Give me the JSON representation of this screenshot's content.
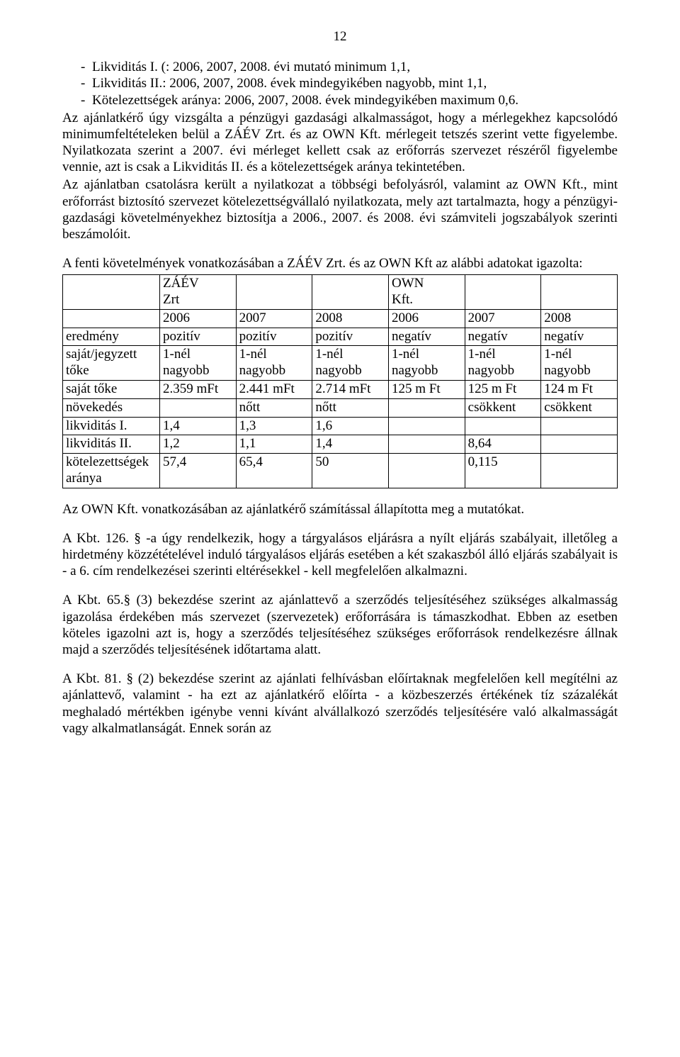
{
  "pageNumber": "12",
  "bullets": [
    "Likviditás I. (: 2006, 2007, 2008. évi mutató minimum 1,1,",
    "Likviditás II.: 2006, 2007, 2008. évek mindegyikében nagyobb, mint 1,1,",
    "Kötelezettségek aránya: 2006, 2007, 2008. évek mindegyikében maximum 0,6."
  ],
  "p1": "Az ajánlatkérő úgy vizsgálta a pénzügyi gazdasági alkalmasságot, hogy a mérlegekhez kapcsolódó minimumfeltételeken belül a ZÁÉV Zrt. és az OWN Kft. mérlegeit tetszés szerint vette figyelembe. Nyilatkozata szerint a 2007. évi mérleget kellett csak az erőforrás szervezet részéről figyelembe vennie, azt is csak a Likviditás II. és a kötelezettségek aránya tekintetében.",
  "p2": "Az ajánlatban csatolásra került a nyilatkozat a többségi befolyásról, valamint az OWN Kft., mint erőforrást biztosító szervezet kötelezettségvállaló nyilatkozata, mely azt tartalmazta, hogy a pénzügyi-gazdasági követelményekhez biztosítja a 2006., 2007. és 2008. évi számviteli jogszabályok szerinti beszámolóit.",
  "p3": "A fenti követelmények vonatkozásában a ZÁÉV Zrt. és az OWN Kft az alábbi adatokat igazolta:",
  "table": {
    "h1a": "ZÁÉV",
    "h1b": "Zrt",
    "h2a": "OWN",
    "h2b": "Kft.",
    "years": [
      "2006",
      "2007",
      "2008",
      "2006",
      "2007",
      "2008"
    ],
    "rows": [
      {
        "label": "eredmény",
        "cells": [
          "pozitív",
          "pozitív",
          "pozitív",
          "negatív",
          "negatív",
          "negatív"
        ]
      },
      {
        "label": "saját/jegyzett tőke",
        "cells": [
          "1-nél nagyobb",
          "1-nél nagyobb",
          "1-nél nagyobb",
          "1-nél nagyobb",
          "1-nél nagyobb",
          "1-nél nagyobb"
        ]
      },
      {
        "label": "saját tőke",
        "cells": [
          "2.359 mFt",
          "2.441 mFt",
          "2.714 mFt",
          "125 m Ft",
          "125 m Ft",
          "124 m Ft"
        ]
      },
      {
        "label": "növekedés",
        "cells": [
          "",
          "nőtt",
          "nőtt",
          "",
          "csökkent",
          "csökkent"
        ]
      },
      {
        "label": "likviditás I.",
        "cells": [
          "1,4",
          "1,3",
          "1,6",
          "",
          "",
          ""
        ]
      },
      {
        "label": "likviditás II.",
        "cells": [
          "1,2",
          "1,1",
          "1,4",
          "",
          "8,64",
          ""
        ]
      },
      {
        "label": "kötelezettségek aránya",
        "cells": [
          "57,4",
          "65,4",
          "50",
          "",
          "0,115",
          ""
        ]
      }
    ]
  },
  "p4": "Az OWN Kft. vonatkozásában az ajánlatkérő számítással állapította meg a mutatókat.",
  "p5": "A Kbt. 126. § -a úgy rendelkezik, hogy a tárgyalásos eljárásra a nyílt eljárás szabályait, illetőleg a hirdetmény közzétételével induló tárgyalásos eljárás esetében a két szakaszból álló eljárás szabályait is - a 6. cím rendelkezései szerinti eltérésekkel - kell megfelelően alkalmazni.",
  "p6": "A Kbt. 65.§ (3) bekezdése szerint az ajánlattevő a szerződés teljesítéséhez szükséges alkalmasság igazolása érdekében más szervezet (szervezetek) erőforrására is támaszkodhat. Ebben az esetben köteles igazolni azt is, hogy a szerződés teljesítéséhez szükséges erőforrások rendelkezésre állnak majd a szerződés teljesítésének időtartama alatt.",
  "p7": "A Kbt. 81. § (2) bekezdése szerint az ajánlati felhívásban előírtaknak megfelelően kell megítélni az ajánlattevő, valamint - ha ezt az ajánlatkérő előírta - a közbeszerzés értékének tíz százalékát meghaladó mértékben igénybe venni kívánt alvállalkozó szerződés teljesítésére való alkalmasságát vagy alkalmatlanságát. Ennek során az"
}
